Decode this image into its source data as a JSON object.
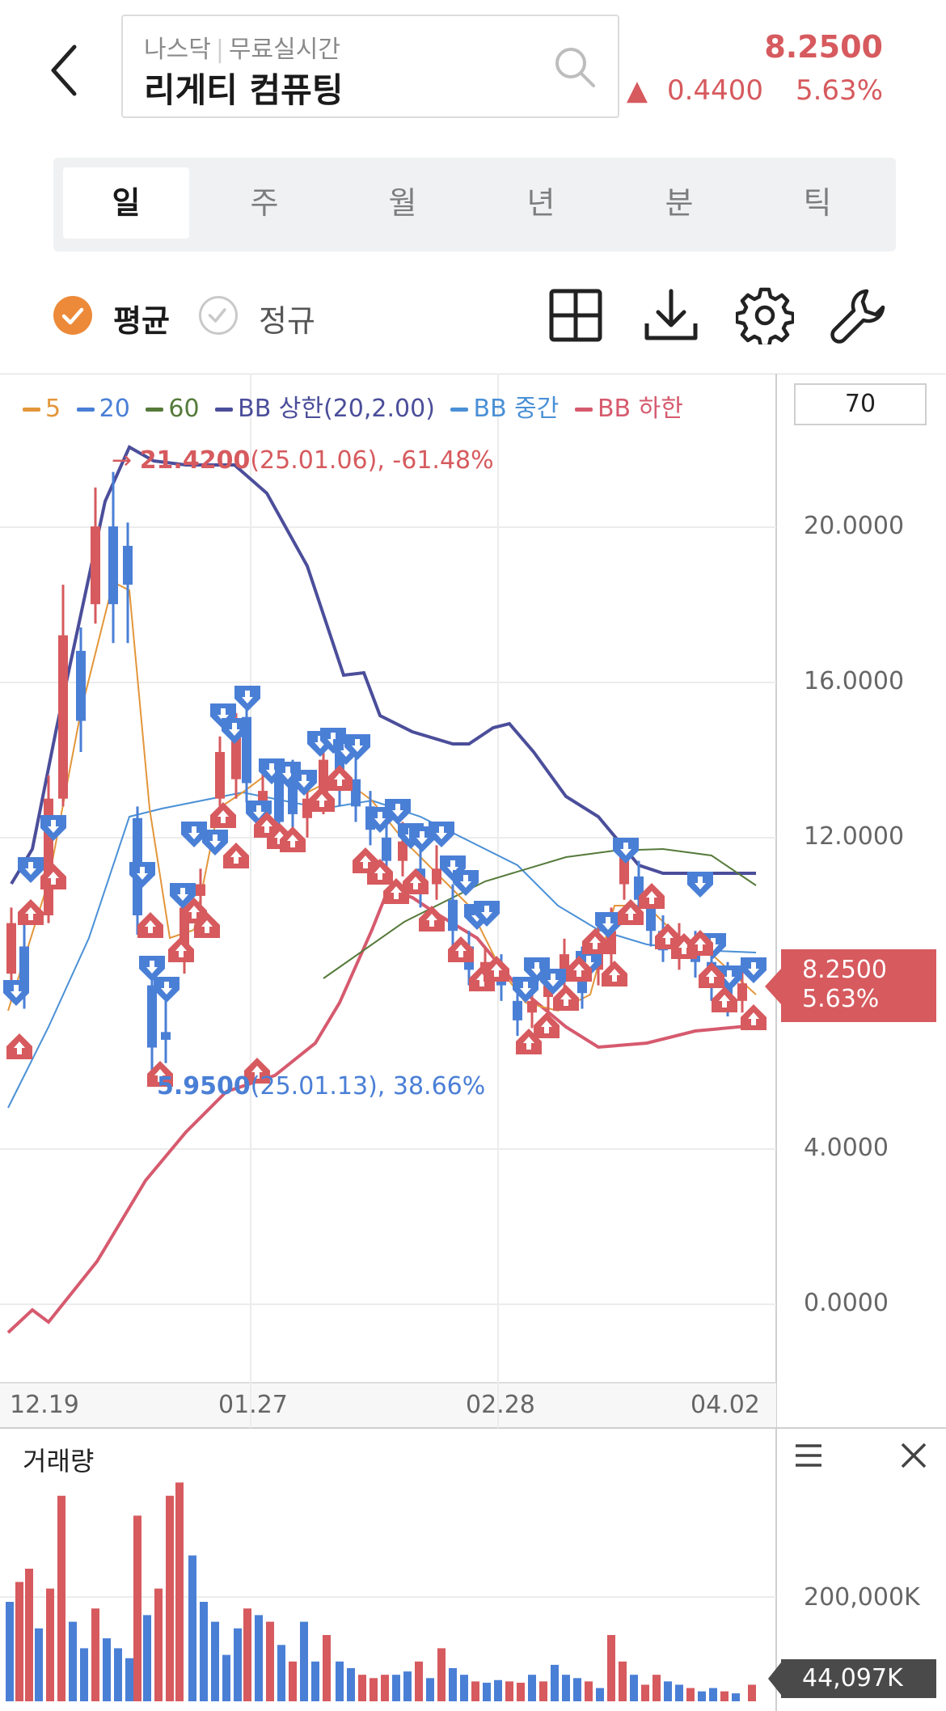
{
  "header": {
    "market": "나스닥",
    "data_type": "무료실시간",
    "stock_name": "리게티 컴퓨팅",
    "price": "8.2500",
    "change_symbol": "▲",
    "change_value": "0.4400",
    "change_percent": "5.63%"
  },
  "tabs": [
    {
      "label": "일",
      "active": true
    },
    {
      "label": "주",
      "active": false
    },
    {
      "label": "월",
      "active": false
    },
    {
      "label": "년",
      "active": false
    },
    {
      "label": "분",
      "active": false
    },
    {
      "label": "틱",
      "active": false
    }
  ],
  "options": {
    "average_label": "평균",
    "average_checked": true,
    "regular_label": "정규",
    "regular_checked": false
  },
  "tools": [
    "grid-layout-icon",
    "download-icon",
    "settings-icon",
    "wrench-icon"
  ],
  "legend": [
    {
      "label": "5",
      "color": "#e3963a"
    },
    {
      "label": "20",
      "color": "#4a7fd6"
    },
    {
      "label": "60",
      "color": "#557a3a"
    },
    {
      "label": "BB 상한(20,2.00)",
      "color": "#4b4e9a"
    },
    {
      "label": "BB 중간",
      "color": "#4a90d6"
    },
    {
      "label": "BB 하한",
      "color": "#d65a6e"
    }
  ],
  "count_value": "70",
  "y_ticks": [
    "20.0000",
    "16.0000",
    "12.0000",
    "4.0000",
    "0.0000"
  ],
  "x_ticks": [
    "12.19",
    "01.27",
    "02.28",
    "04.02"
  ],
  "current_price_label": {
    "price": "8.2500",
    "percent": "5.63%"
  },
  "annotations": {
    "high": {
      "value": "21.4200",
      "rest": "(25.01.06), -61.48%"
    },
    "low": {
      "value": "5.9500",
      "rest": "(25.01.13), 38.66%"
    }
  },
  "volume": {
    "title": "거래량",
    "tick": "200,000K",
    "current": "44,097K"
  },
  "colors": {
    "up": "#d65a5e",
    "down": "#4a7fd6",
    "accent": "#ec8a3a"
  }
}
